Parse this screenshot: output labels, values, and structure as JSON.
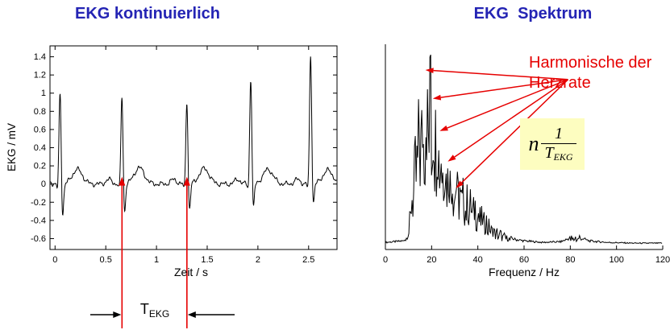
{
  "titles": {
    "left": "EKG kontinuierlich",
    "right": "EKG  Spektrum"
  },
  "colors": {
    "title_blue": "#2424b4",
    "annotation_red": "#e60000",
    "trace_black": "#000000",
    "formula_bg": "#fdfdc0"
  },
  "annotations": {
    "t_label_main": "T",
    "t_label_sub": "EKG",
    "harmonics_line1": "Harmonische der",
    "harmonics_line2": "Herzrate",
    "formula_n": "n",
    "formula_numerator": "1",
    "formula_den_main": "T",
    "formula_den_sub": "EKG"
  },
  "chart_data": [
    {
      "type": "line",
      "title": "EKG kontinuierlich",
      "xlabel": "Zeit / s",
      "ylabel": "EKG / mV",
      "xlim": [
        -0.05,
        2.78
      ],
      "ylim": [
        -0.72,
        1.52
      ],
      "xticks": [
        0,
        0.5,
        1,
        1.5,
        2,
        2.5
      ],
      "xtick_labels": [
        "0",
        "0.5",
        "1",
        "1.5",
        "2",
        "2.5"
      ],
      "yticks": [
        -0.6,
        -0.4,
        -0.2,
        0,
        0.2,
        0.4,
        0.6,
        0.8,
        1,
        1.2,
        1.4
      ],
      "ytick_labels": [
        "-0.6",
        "-0.4",
        "-0.2",
        "0",
        "0.2",
        "0.4",
        "0.6",
        "0.8",
        "1",
        "1.2",
        "1.4"
      ],
      "grid": false,
      "beats": [
        {
          "t": 0.05,
          "r": 1.05,
          "s": -0.42,
          "twave": 0.16
        },
        {
          "t": 0.66,
          "r": 1.0,
          "s": -0.38,
          "twave": 0.18
        },
        {
          "t": 1.3,
          "r": 0.95,
          "s": -0.36,
          "twave": 0.17
        },
        {
          "t": 1.93,
          "r": 1.2,
          "s": -0.34,
          "twave": 0.16
        },
        {
          "t": 2.52,
          "r": 1.45,
          "s": -0.3,
          "twave": 0.15
        }
      ],
      "period_markers": [
        0.66,
        1.3
      ],
      "period_label": "T_EKG"
    },
    {
      "type": "line",
      "title": "EKG Spektrum",
      "xlabel": "Frequenz / Hz",
      "ylabel": "",
      "xlim": [
        0,
        120
      ],
      "ylim": [
        0,
        1.05
      ],
      "xticks": [
        0,
        20,
        40,
        60,
        80,
        100,
        120
      ],
      "xtick_labels": [
        "0",
        "20",
        "40",
        "60",
        "80",
        "100",
        "120"
      ],
      "grid": false,
      "envelope": [
        [
          0,
          0.02
        ],
        [
          8,
          0.03
        ],
        [
          10,
          0.1
        ],
        [
          12,
          0.42
        ],
        [
          14,
          0.72
        ],
        [
          16,
          0.9
        ],
        [
          18,
          1.0
        ],
        [
          20,
          0.95
        ],
        [
          22,
          0.85
        ],
        [
          24,
          0.72
        ],
        [
          26,
          0.6
        ],
        [
          28,
          0.52
        ],
        [
          30,
          0.45
        ],
        [
          33,
          0.36
        ],
        [
          36,
          0.3
        ],
        [
          40,
          0.24
        ],
        [
          44,
          0.15
        ],
        [
          48,
          0.09
        ],
        [
          52,
          0.06
        ],
        [
          56,
          0.04
        ],
        [
          60,
          0.03
        ],
        [
          68,
          0.02
        ],
        [
          76,
          0.025
        ],
        [
          80,
          0.05
        ],
        [
          84,
          0.055
        ],
        [
          88,
          0.03
        ],
        [
          96,
          0.02
        ],
        [
          108,
          0.015
        ],
        [
          120,
          0.015
        ]
      ],
      "forced_peaks": [
        [
          19.6,
          1.0
        ]
      ],
      "harmonic_spacing": 1.61,
      "arrow_origin": [
        79,
        0.87
      ],
      "arrow_targets": [
        [
          17.3,
          0.92
        ],
        [
          20.5,
          0.77
        ],
        [
          23.5,
          0.6
        ],
        [
          27,
          0.44
        ],
        [
          30.5,
          0.3
        ]
      ],
      "annotation": "Harmonische der Herzrate",
      "formula": "n * 1/T_EKG"
    }
  ]
}
